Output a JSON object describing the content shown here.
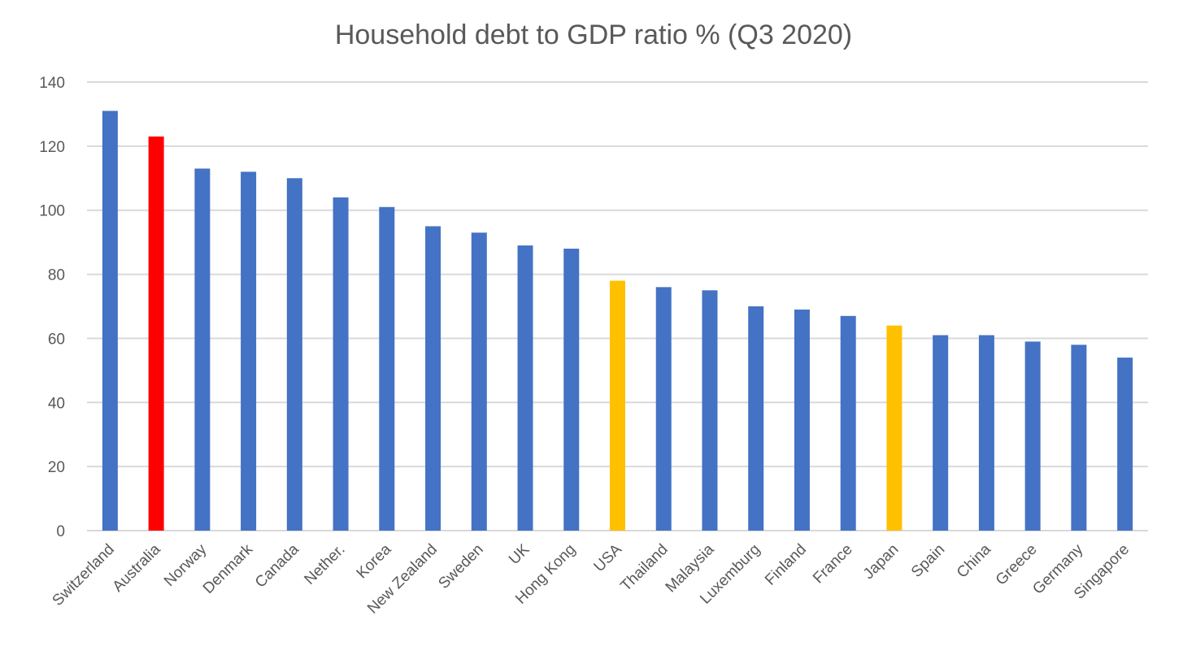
{
  "chart_data": {
    "type": "bar",
    "title": "Household debt to GDP ratio % (Q3 2020)",
    "xlabel": "",
    "ylabel": "",
    "ylim": [
      0,
      140
    ],
    "yticks": [
      0,
      20,
      40,
      60,
      80,
      100,
      120,
      140
    ],
    "grid": true,
    "categories": [
      "Switzerland",
      "Australia",
      "Norway",
      "Denmark",
      "Canada",
      "Nether.",
      "Korea",
      "New Zealand",
      "Sweden",
      "UK",
      "Hong Kong",
      "USA",
      "Thailand",
      "Malaysia",
      "Luxemburg",
      "Finland",
      "France",
      "Japan",
      "Spain",
      "China",
      "Greece",
      "Germany",
      "Singapore"
    ],
    "values": [
      131,
      123,
      113,
      112,
      110,
      104,
      101,
      95,
      93,
      89,
      88,
      78,
      76,
      75,
      70,
      69,
      67,
      64,
      61,
      61,
      59,
      58,
      54
    ],
    "colors": {
      "default": "#4472c4",
      "highlight": {
        "Australia": "#ff0000",
        "USA": "#ffc000",
        "Japan": "#ffc000"
      }
    }
  }
}
